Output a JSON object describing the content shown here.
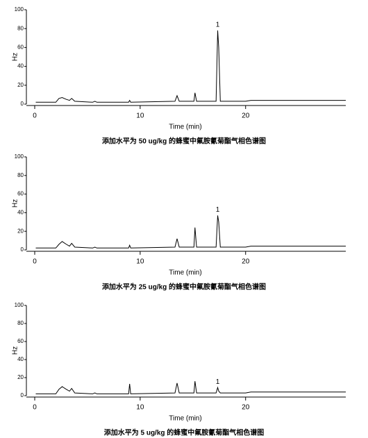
{
  "chart_data": [
    {
      "type": "line",
      "title": "添加水平为 50 ug/kg 的蜂蜜中氟胺氰菊酯气相色谱图",
      "x_label": "Time (min)",
      "y_label": "Hz",
      "xlim": [
        0,
        29.5
      ],
      "xticks": [
        0,
        10,
        20
      ],
      "ylim": [
        0,
        100
      ],
      "yticks": [
        0,
        20,
        40,
        60,
        80,
        100
      ],
      "color": "#000000",
      "x": [
        0.1,
        2.0,
        2.3,
        2.6,
        3.0,
        3.3,
        3.5,
        3.8,
        5.5,
        5.7,
        5.9,
        8.9,
        9.0,
        9.1,
        13.3,
        13.5,
        13.7,
        15.1,
        15.2,
        15.35,
        17.2,
        17.35,
        17.45,
        17.6,
        17.8,
        20,
        20.5,
        23,
        29.5
      ],
      "values": [
        2,
        2,
        6,
        7,
        5,
        4,
        6,
        3,
        2,
        3,
        2,
        2,
        4,
        2,
        3,
        9,
        3,
        3,
        12,
        3,
        3,
        78,
        60,
        3,
        3,
        3,
        4,
        4,
        4
      ],
      "annotations": [
        {
          "text": "1",
          "x": 17.35,
          "y": 78
        }
      ]
    },
    {
      "type": "line",
      "title": "添加水平为 25 ug/kg 的蜂蜜中氟胺氰菊酯气相色谱图",
      "x_label": "Time (min)",
      "y_label": "Hz",
      "xlim": [
        0,
        29.5
      ],
      "xticks": [
        0,
        10,
        20
      ],
      "ylim": [
        0,
        100
      ],
      "yticks": [
        0,
        20,
        40,
        60,
        80,
        100
      ],
      "color": "#000000",
      "x": [
        0.1,
        2.0,
        2.3,
        2.6,
        3.0,
        3.3,
        3.5,
        3.8,
        5.5,
        5.7,
        5.9,
        8.9,
        9.0,
        9.1,
        13.3,
        13.5,
        13.7,
        15.1,
        15.2,
        15.35,
        17.2,
        17.35,
        17.45,
        17.6,
        17.8,
        20,
        20.5,
        23,
        29.5
      ],
      "values": [
        2,
        2,
        6,
        9,
        6,
        4,
        7,
        3,
        2,
        3,
        2,
        2,
        5,
        2,
        3,
        12,
        3,
        3,
        24,
        3,
        3,
        37,
        30,
        3,
        3,
        3,
        4,
        4,
        4
      ],
      "annotations": [
        {
          "text": "1",
          "x": 17.35,
          "y": 37
        }
      ]
    },
    {
      "type": "line",
      "title": "添加水平为 5 ug/kg 的蜂蜜中氟胺氰菊酯气相色谱图",
      "x_label": "Time (min)",
      "y_label": "Hz",
      "xlim": [
        0,
        29.5
      ],
      "xticks": [
        0,
        10,
        20
      ],
      "ylim": [
        0,
        100
      ],
      "yticks": [
        0,
        20,
        40,
        60,
        80,
        100
      ],
      "color": "#000000",
      "x": [
        0.1,
        2.0,
        2.3,
        2.6,
        3.0,
        3.3,
        3.5,
        3.8,
        5.5,
        5.7,
        5.9,
        8.9,
        9.0,
        9.1,
        13.3,
        13.5,
        13.7,
        15.1,
        15.2,
        15.35,
        17.2,
        17.35,
        17.45,
        17.6,
        17.8,
        20,
        20.5,
        23,
        29.5
      ],
      "values": [
        2,
        2,
        7,
        10,
        7,
        5,
        8,
        3,
        2,
        3,
        2,
        2,
        13,
        2,
        3,
        14,
        3,
        3,
        16,
        3,
        3,
        9,
        5,
        3,
        3,
        3,
        4,
        4,
        4
      ],
      "annotations": [
        {
          "text": "1",
          "x": 17.35,
          "y": 9
        }
      ]
    }
  ]
}
